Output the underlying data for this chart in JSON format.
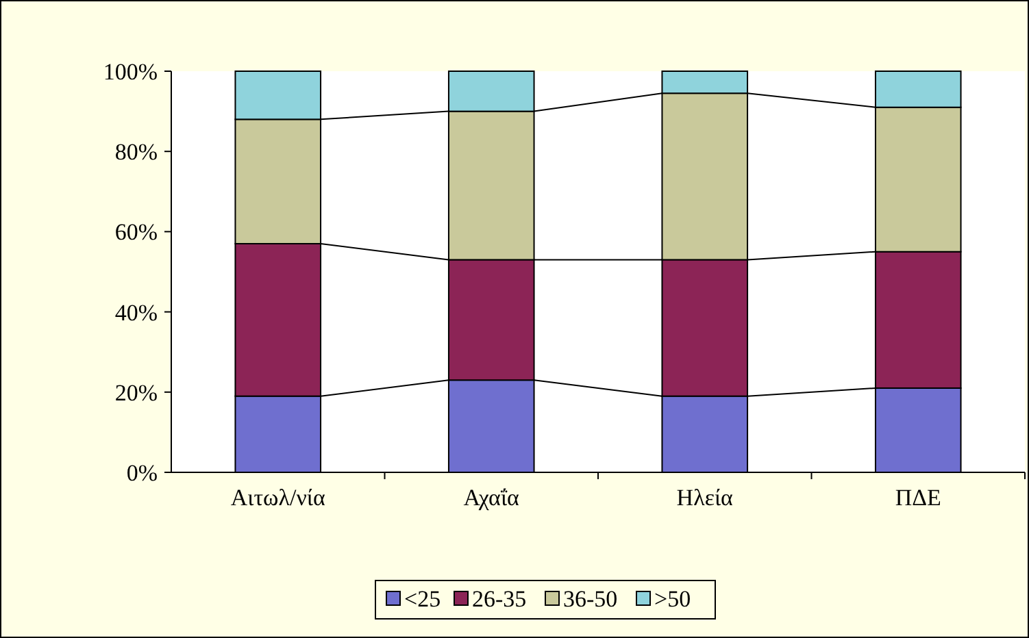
{
  "chart_data": {
    "type": "bar",
    "stacked": true,
    "categories": [
      "Αιτωλ/νία",
      "Αχαΐα",
      "Ηλεία",
      "ΠΔΕ"
    ],
    "series": [
      {
        "name": "<25",
        "color": "#6f6fcf",
        "values": [
          19,
          23,
          19,
          21
        ]
      },
      {
        "name": "26-35",
        "color": "#8c2456",
        "values": [
          38,
          30,
          34,
          34
        ]
      },
      {
        "name": "36-50",
        "color": "#c9c99b",
        "values": [
          31,
          37,
          41.5,
          36
        ]
      },
      {
        "name": ">50",
        "color": "#8fd3dc",
        "values": [
          12,
          10,
          5.5,
          9
        ]
      }
    ],
    "ylim": [
      0,
      100
    ],
    "yticks": [
      {
        "value": 0,
        "label": "0%"
      },
      {
        "value": 20,
        "label": "20%"
      },
      {
        "value": 40,
        "label": "40%"
      },
      {
        "value": 60,
        "label": "60%"
      },
      {
        "value": 80,
        "label": "80%"
      },
      {
        "value": 100,
        "label": "100%"
      }
    ],
    "legend": "bottom"
  }
}
